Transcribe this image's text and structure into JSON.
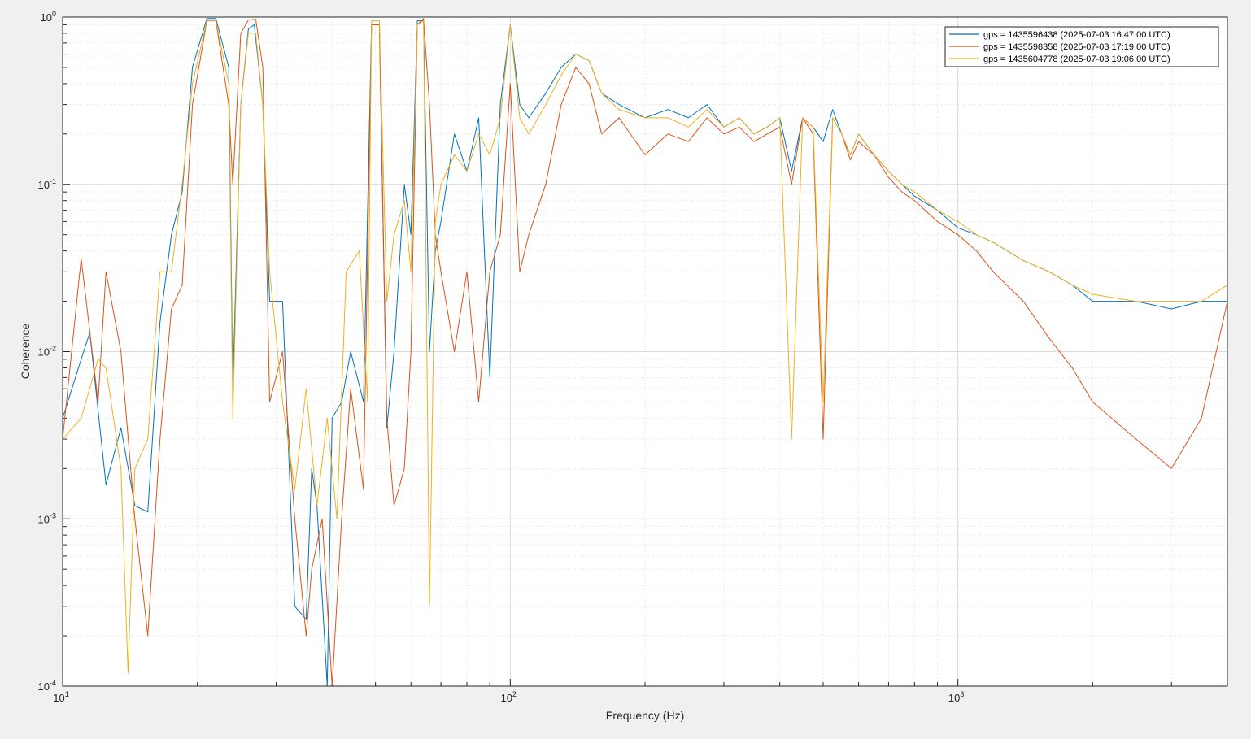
{
  "chart_data": {
    "type": "line",
    "xscale": "log",
    "yscale": "log",
    "xlim": [
      10,
      4000
    ],
    "ylim": [
      0.0001,
      1
    ],
    "xlabel": "Frequency (Hz)",
    "ylabel": "Coherence",
    "grid": true,
    "minor_grid": true,
    "legend_position": "top-right",
    "x_ticks": [
      {
        "value": 10,
        "base": "10",
        "exp": "1"
      },
      {
        "value": 100,
        "base": "10",
        "exp": "2"
      },
      {
        "value": 1000,
        "base": "10",
        "exp": "3"
      }
    ],
    "y_ticks": [
      {
        "value": 0.0001,
        "base": "10",
        "exp": "-4"
      },
      {
        "value": 0.001,
        "base": "10",
        "exp": "-3"
      },
      {
        "value": 0.01,
        "base": "10",
        "exp": "-2"
      },
      {
        "value": 0.1,
        "base": "10",
        "exp": "-1"
      },
      {
        "value": 1,
        "base": "10",
        "exp": "0"
      }
    ],
    "series": [
      {
        "name": "gps = 1435596438 (2025-07-03 16:47:00 UTC)",
        "color": "#0072bd",
        "points": [
          [
            10,
            0.004
          ],
          [
            11,
            0.009
          ],
          [
            11.5,
            0.013
          ],
          [
            12.5,
            0.0016
          ],
          [
            13.5,
            0.0035
          ],
          [
            14.5,
            0.0012
          ],
          [
            15.5,
            0.0011
          ],
          [
            16.5,
            0.015
          ],
          [
            17.5,
            0.05
          ],
          [
            18.5,
            0.09
          ],
          [
            19.5,
            0.5
          ],
          [
            21,
            0.98
          ],
          [
            22,
            0.98
          ],
          [
            23.5,
            0.5
          ],
          [
            24,
            0.006
          ],
          [
            25,
            0.3
          ],
          [
            26,
            0.85
          ],
          [
            26.8,
            0.9
          ],
          [
            28,
            0.3
          ],
          [
            29,
            0.02
          ],
          [
            31,
            0.02
          ],
          [
            33,
            0.0003
          ],
          [
            35,
            0.00025
          ],
          [
            36,
            0.002
          ],
          [
            37,
            0.0012
          ],
          [
            39,
            0.0001
          ],
          [
            40,
            0.004
          ],
          [
            42,
            0.005
          ],
          [
            44,
            0.01
          ],
          [
            47,
            0.005
          ],
          [
            49,
            0.9
          ],
          [
            51,
            0.9
          ],
          [
            53,
            0.0035
          ],
          [
            55,
            0.01
          ],
          [
            58,
            0.1
          ],
          [
            60,
            0.05
          ],
          [
            62,
            0.95
          ],
          [
            64,
            0.95
          ],
          [
            66,
            0.01
          ],
          [
            68,
            0.04
          ],
          [
            70,
            0.06
          ],
          [
            75,
            0.2
          ],
          [
            80,
            0.12
          ],
          [
            85,
            0.25
          ],
          [
            90,
            0.007
          ],
          [
            95,
            0.3
          ],
          [
            100,
            0.9
          ],
          [
            105,
            0.3
          ],
          [
            110,
            0.25
          ],
          [
            120,
            0.35
          ],
          [
            130,
            0.5
          ],
          [
            140,
            0.6
          ],
          [
            150,
            0.55
          ],
          [
            160,
            0.35
          ],
          [
            175,
            0.3
          ],
          [
            200,
            0.25
          ],
          [
            225,
            0.28
          ],
          [
            250,
            0.25
          ],
          [
            275,
            0.3
          ],
          [
            300,
            0.22
          ],
          [
            325,
            0.25
          ],
          [
            350,
            0.2
          ],
          [
            375,
            0.22
          ],
          [
            400,
            0.25
          ],
          [
            425,
            0.12
          ],
          [
            450,
            0.25
          ],
          [
            475,
            0.22
          ],
          [
            500,
            0.18
          ],
          [
            525,
            0.28
          ],
          [
            550,
            0.2
          ],
          [
            575,
            0.15
          ],
          [
            600,
            0.2
          ],
          [
            650,
            0.15
          ],
          [
            700,
            0.12
          ],
          [
            750,
            0.1
          ],
          [
            800,
            0.085
          ],
          [
            900,
            0.07
          ],
          [
            1000,
            0.055
          ],
          [
            1100,
            0.05
          ],
          [
            1200,
            0.045
          ],
          [
            1400,
            0.035
          ],
          [
            1600,
            0.03
          ],
          [
            1800,
            0.025
          ],
          [
            2000,
            0.02
          ],
          [
            2500,
            0.02
          ],
          [
            3000,
            0.018
          ],
          [
            3500,
            0.02
          ],
          [
            4000,
            0.02
          ]
        ]
      },
      {
        "name": "gps = 1435598358 (2025-07-03 17:19:00 UTC)",
        "color": "#d95319",
        "points": [
          [
            10,
            0.003
          ],
          [
            11,
            0.036
          ],
          [
            12,
            0.005
          ],
          [
            12.5,
            0.03
          ],
          [
            13.5,
            0.01
          ],
          [
            14.5,
            0.001
          ],
          [
            15.5,
            0.0002
          ],
          [
            16.5,
            0.003
          ],
          [
            17.5,
            0.018
          ],
          [
            18.5,
            0.025
          ],
          [
            19.5,
            0.3
          ],
          [
            21,
            0.95
          ],
          [
            22,
            0.95
          ],
          [
            23.5,
            0.3
          ],
          [
            24,
            0.1
          ],
          [
            25,
            0.8
          ],
          [
            26,
            0.96
          ],
          [
            27,
            0.97
          ],
          [
            28,
            0.5
          ],
          [
            29,
            0.005
          ],
          [
            31,
            0.01
          ],
          [
            33,
            0.001
          ],
          [
            35,
            0.0002
          ],
          [
            36,
            0.0005
          ],
          [
            38,
            0.001
          ],
          [
            40,
            0.0001
          ],
          [
            42,
            0.001
          ],
          [
            44,
            0.006
          ],
          [
            47,
            0.0015
          ],
          [
            49,
            0.9
          ],
          [
            51,
            0.9
          ],
          [
            53,
            0.004
          ],
          [
            55,
            0.0012
          ],
          [
            58,
            0.002
          ],
          [
            60,
            0.01
          ],
          [
            62,
            0.9
          ],
          [
            64,
            0.98
          ],
          [
            66,
            0.3
          ],
          [
            68,
            0.05
          ],
          [
            70,
            0.03
          ],
          [
            75,
            0.01
          ],
          [
            80,
            0.03
          ],
          [
            85,
            0.005
          ],
          [
            90,
            0.03
          ],
          [
            95,
            0.05
          ],
          [
            100,
            0.4
          ],
          [
            105,
            0.03
          ],
          [
            110,
            0.05
          ],
          [
            120,
            0.1
          ],
          [
            130,
            0.3
          ],
          [
            140,
            0.5
          ],
          [
            150,
            0.4
          ],
          [
            160,
            0.2
          ],
          [
            175,
            0.25
          ],
          [
            200,
            0.15
          ],
          [
            225,
            0.2
          ],
          [
            250,
            0.18
          ],
          [
            275,
            0.25
          ],
          [
            300,
            0.2
          ],
          [
            325,
            0.22
          ],
          [
            350,
            0.18
          ],
          [
            375,
            0.2
          ],
          [
            400,
            0.22
          ],
          [
            425,
            0.1
          ],
          [
            450,
            0.25
          ],
          [
            475,
            0.2
          ],
          [
            500,
            0.003
          ],
          [
            525,
            0.25
          ],
          [
            550,
            0.2
          ],
          [
            575,
            0.14
          ],
          [
            600,
            0.18
          ],
          [
            650,
            0.15
          ],
          [
            700,
            0.11
          ],
          [
            750,
            0.09
          ],
          [
            800,
            0.08
          ],
          [
            900,
            0.06
          ],
          [
            1000,
            0.05
          ],
          [
            1100,
            0.04
          ],
          [
            1200,
            0.03
          ],
          [
            1400,
            0.02
          ],
          [
            1600,
            0.012
          ],
          [
            1800,
            0.008
          ],
          [
            2000,
            0.005
          ],
          [
            2500,
            0.003
          ],
          [
            3000,
            0.002
          ],
          [
            3500,
            0.004
          ],
          [
            4000,
            0.02
          ]
        ]
      },
      {
        "name": "gps = 1435604778 (2025-07-03 19:06:00 UTC)",
        "color": "#edb120",
        "points": [
          [
            10,
            0.003
          ],
          [
            11,
            0.004
          ],
          [
            12,
            0.009
          ],
          [
            12.5,
            0.008
          ],
          [
            13.5,
            0.002
          ],
          [
            14,
            0.00012
          ],
          [
            14.5,
            0.002
          ],
          [
            15.5,
            0.003
          ],
          [
            16.5,
            0.03
          ],
          [
            17.5,
            0.03
          ],
          [
            18.5,
            0.1
          ],
          [
            19.5,
            0.4
          ],
          [
            21,
            0.95
          ],
          [
            22,
            0.95
          ],
          [
            23.5,
            0.4
          ],
          [
            24,
            0.004
          ],
          [
            25,
            0.3
          ],
          [
            26,
            0.8
          ],
          [
            27,
            0.8
          ],
          [
            28,
            0.3
          ],
          [
            29,
            0.03
          ],
          [
            31,
            0.005
          ],
          [
            33,
            0.0015
          ],
          [
            35,
            0.006
          ],
          [
            37,
            0.0012
          ],
          [
            39,
            0.004
          ],
          [
            41,
            0.001
          ],
          [
            43,
            0.03
          ],
          [
            46,
            0.04
          ],
          [
            48,
            0.005
          ],
          [
            49,
            0.95
          ],
          [
            51,
            0.95
          ],
          [
            53,
            0.02
          ],
          [
            55,
            0.05
          ],
          [
            58,
            0.08
          ],
          [
            60,
            0.03
          ],
          [
            62,
            0.9
          ],
          [
            64,
            0.95
          ],
          [
            66,
            0.0003
          ],
          [
            68,
            0.06
          ],
          [
            70,
            0.1
          ],
          [
            75,
            0.15
          ],
          [
            80,
            0.12
          ],
          [
            85,
            0.2
          ],
          [
            90,
            0.15
          ],
          [
            95,
            0.25
          ],
          [
            100,
            0.9
          ],
          [
            105,
            0.25
          ],
          [
            110,
            0.2
          ],
          [
            120,
            0.3
          ],
          [
            130,
            0.45
          ],
          [
            140,
            0.6
          ],
          [
            150,
            0.55
          ],
          [
            160,
            0.35
          ],
          [
            175,
            0.28
          ],
          [
            200,
            0.25
          ],
          [
            225,
            0.25
          ],
          [
            250,
            0.22
          ],
          [
            275,
            0.28
          ],
          [
            300,
            0.22
          ],
          [
            325,
            0.25
          ],
          [
            350,
            0.2
          ],
          [
            375,
            0.22
          ],
          [
            400,
            0.25
          ],
          [
            425,
            0.003
          ],
          [
            450,
            0.25
          ],
          [
            475,
            0.22
          ],
          [
            500,
            0.005
          ],
          [
            525,
            0.25
          ],
          [
            550,
            0.2
          ],
          [
            575,
            0.15
          ],
          [
            600,
            0.2
          ],
          [
            650,
            0.15
          ],
          [
            700,
            0.12
          ],
          [
            750,
            0.1
          ],
          [
            800,
            0.09
          ],
          [
            900,
            0.07
          ],
          [
            1000,
            0.06
          ],
          [
            1100,
            0.05
          ],
          [
            1200,
            0.045
          ],
          [
            1400,
            0.035
          ],
          [
            1600,
            0.03
          ],
          [
            1800,
            0.025
          ],
          [
            2000,
            0.022
          ],
          [
            2500,
            0.02
          ],
          [
            3000,
            0.02
          ],
          [
            3500,
            0.02
          ],
          [
            4000,
            0.025
          ]
        ]
      }
    ]
  }
}
